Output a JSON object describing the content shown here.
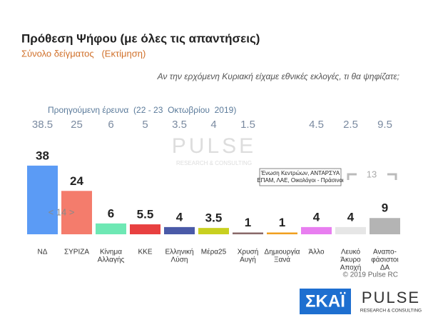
{
  "chart_data": {
    "type": "bar",
    "title": "Πρόθεση Ψήφου (με όλες τις απαντήσεις)",
    "subtitle": "Σύνολο δείγματος   (Εκτίμηση)",
    "question": "Αν την ερχόμενη Κυριακή είχαμε εθνικές εκλογές, τι θα ψηφίζατε;",
    "previous_label": "Προηγούμενη έρευνα  (22 - 23  Οκτωβρίου  2019)",
    "categories": [
      [
        "ΝΔ"
      ],
      [
        "ΣΥΡΙΖΑ"
      ],
      [
        "Κίνημα",
        "Αλλαγής"
      ],
      [
        "ΚΚΕ"
      ],
      [
        "Ελληνική",
        "Λύση"
      ],
      [
        "Μέρα25"
      ],
      [
        "Χρυσή",
        "Αυγή"
      ],
      [
        "Δημιουργία",
        "Ξανά"
      ],
      [
        "Άλλο"
      ],
      [
        "Λευκό",
        "Άκυρο",
        "Αποχή"
      ],
      [
        "Αναπο-",
        "φάσιστοι",
        "ΔΑ"
      ]
    ],
    "values": [
      38,
      24,
      6,
      5.5,
      4,
      3.5,
      1,
      1,
      4,
      4,
      9
    ],
    "previous_values": [
      38.5,
      25,
      6,
      5,
      3.5,
      4,
      1.5,
      null,
      4.5,
      2.5,
      9.5
    ],
    "colors": [
      "#5b9bf5",
      "#f47c6c",
      "#6ee8b4",
      "#e84040",
      "#4a5aa8",
      "#c8d020",
      "#8a6a6a",
      "#f0a020",
      "#e87ef0",
      "#e6e6e6",
      "#b4b4b4"
    ],
    "annotations": {
      "gap_nd_syriza": "< 14 >",
      "gap_undecided": "13",
      "other_note": [
        "Ένωση Κεντρώων, ΑΝΤΑΡΣΥΑ",
        "ΕΠΑΜ, ΛΑΕ, Οικολόγοι - Πράσινοι"
      ]
    },
    "copyright": "© 2019 Pulse RC",
    "logos": {
      "skai": "ΣΚΑΪ",
      "pulse": "PULSE",
      "pulse_tagline": "RESEARCH & CONSULTING"
    }
  }
}
